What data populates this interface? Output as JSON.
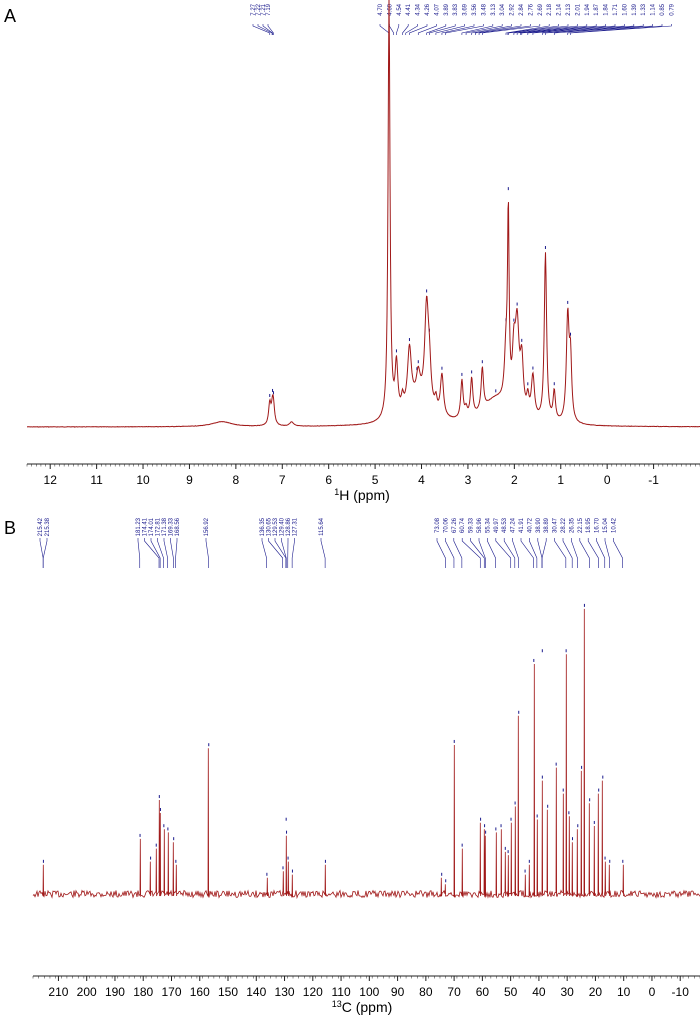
{
  "chart_data": [
    {
      "type": "line",
      "panel_label": "A",
      "xlabel_sup": "1",
      "xlabel_main": "H (ppm)",
      "xlim": [
        12.5,
        -2.0
      ],
      "ticks": [
        "12",
        "11",
        "10",
        "9",
        "8",
        "7",
        "6",
        "5",
        "4",
        "3",
        "2",
        "1",
        "0",
        "-1"
      ],
      "peak_labels": {
        "left_group": [
          "7.27",
          "7.22",
          "7.21",
          "7.19"
        ],
        "right_group": [
          "4.70",
          "4.60",
          "4.54",
          "4.41",
          "4.34",
          "4.26",
          "4.07",
          "3.89",
          "3.83",
          "3.69",
          "3.56",
          "3.48",
          "3.13",
          "3.04",
          "2.92",
          "2.84",
          "2.76",
          "2.69",
          "2.18",
          "2.14",
          "2.13",
          "2.01",
          "1.94",
          "1.87",
          "1.84",
          "1.71",
          "1.60",
          "1.39",
          "1.33",
          "1.14",
          "0.85",
          "0.79"
        ]
      },
      "peaks": [
        {
          "x": 8.3,
          "y": 0.012,
          "w": 0.25
        },
        {
          "x": 7.27,
          "y": 0.05,
          "w": 0.03
        },
        {
          "x": 7.21,
          "y": 0.04,
          "w": 0.03
        },
        {
          "x": 7.19,
          "y": 0.035,
          "w": 0.03
        },
        {
          "x": 6.8,
          "y": 0.01,
          "w": 0.05
        },
        {
          "x": 4.7,
          "y": 1.0,
          "w": 0.025
        },
        {
          "x": 4.54,
          "y": 0.12,
          "w": 0.035
        },
        {
          "x": 4.41,
          "y": 0.03,
          "w": 0.03
        },
        {
          "x": 4.26,
          "y": 0.14,
          "w": 0.05
        },
        {
          "x": 4.07,
          "y": 0.06,
          "w": 0.05
        },
        {
          "x": 3.89,
          "y": 0.24,
          "w": 0.05
        },
        {
          "x": 3.83,
          "y": 0.08,
          "w": 0.04
        },
        {
          "x": 3.69,
          "y": 0.03,
          "w": 0.03
        },
        {
          "x": 3.56,
          "y": 0.1,
          "w": 0.04
        },
        {
          "x": 3.13,
          "y": 0.09,
          "w": 0.03
        },
        {
          "x": 3.04,
          "y": 0.02,
          "w": 0.03
        },
        {
          "x": 2.92,
          "y": 0.09,
          "w": 0.03
        },
        {
          "x": 2.69,
          "y": 0.1,
          "w": 0.03
        },
        {
          "x": 2.18,
          "y": 0.12,
          "w": 0.04
        },
        {
          "x": 2.13,
          "y": 0.44,
          "w": 0.02
        },
        {
          "x": 2.01,
          "y": 0.12,
          "w": 0.04
        },
        {
          "x": 1.94,
          "y": 0.2,
          "w": 0.05
        },
        {
          "x": 1.84,
          "y": 0.12,
          "w": 0.04
        },
        {
          "x": 1.71,
          "y": 0.04,
          "w": 0.03
        },
        {
          "x": 1.6,
          "y": 0.1,
          "w": 0.04
        },
        {
          "x": 1.33,
          "y": 0.4,
          "w": 0.03
        },
        {
          "x": 1.14,
          "y": 0.07,
          "w": 0.03
        },
        {
          "x": 0.85,
          "y": 0.25,
          "w": 0.035
        },
        {
          "x": 0.79,
          "y": 0.14,
          "w": 0.03
        },
        {
          "x": 2.4,
          "y": 0.06,
          "w": 0.35
        },
        {
          "x": 4.1,
          "y": 0.05,
          "w": 0.3
        }
      ]
    },
    {
      "type": "line",
      "panel_label": "B",
      "xlabel_sup": "13",
      "xlabel_main": "C (ppm)",
      "xlim": [
        219,
        -17
      ],
      "ticks": [
        "210",
        "200",
        "190",
        "180",
        "170",
        "160",
        "150",
        "140",
        "130",
        "120",
        "110",
        "100",
        "90",
        "80",
        "70",
        "60",
        "50",
        "40",
        "30",
        "20",
        "10",
        "0",
        "-10"
      ],
      "peak_labels": {
        "group1": [
          "215.42",
          "215.38"
        ],
        "group2": [
          "181.23",
          "174.41",
          "174.01",
          "172.81",
          "171.38",
          "169.33",
          "168.56"
        ],
        "group3": [
          "156.92"
        ],
        "group4": [
          "136.35",
          "130.65",
          "129.53",
          "129.40",
          "128.86",
          "127.31"
        ],
        "group5": [
          "115.64"
        ],
        "group6": [
          "73.08",
          "70.06",
          "67.26",
          "60.74",
          "59.33",
          "58.96",
          "55.34",
          "49.97",
          "48.53",
          "47.24",
          "41.91",
          "40.72",
          "38.90",
          "38.89",
          "30.47",
          "28.22",
          "26.35",
          "22.15",
          "18.95",
          "16.70",
          "15.04",
          "10.42"
        ]
      },
      "peaks": [
        {
          "x": 215.42,
          "y": 0.09
        },
        {
          "x": 181.23,
          "y": 0.17
        },
        {
          "x": 177.5,
          "y": 0.1
        },
        {
          "x": 175.5,
          "y": 0.14
        },
        {
          "x": 174.41,
          "y": 0.29
        },
        {
          "x": 174.01,
          "y": 0.25
        },
        {
          "x": 172.81,
          "y": 0.2
        },
        {
          "x": 171.38,
          "y": 0.19
        },
        {
          "x": 169.33,
          "y": 0.16
        },
        {
          "x": 168.56,
          "y": 0.09
        },
        {
          "x": 156.92,
          "y": 0.45
        },
        {
          "x": 136.35,
          "y": 0.05
        },
        {
          "x": 130.65,
          "y": 0.07
        },
        {
          "x": 129.53,
          "y": 0.22
        },
        {
          "x": 129.4,
          "y": 0.18
        },
        {
          "x": 128.86,
          "y": 0.1
        },
        {
          "x": 127.31,
          "y": 0.06
        },
        {
          "x": 115.64,
          "y": 0.09
        },
        {
          "x": 74.5,
          "y": 0.05
        },
        {
          "x": 73.08,
          "y": 0.03
        },
        {
          "x": 70.06,
          "y": 0.46
        },
        {
          "x": 67.26,
          "y": 0.14
        },
        {
          "x": 60.74,
          "y": 0.22
        },
        {
          "x": 59.33,
          "y": 0.2
        },
        {
          "x": 58.96,
          "y": 0.18
        },
        {
          "x": 55.34,
          "y": 0.19
        },
        {
          "x": 53.5,
          "y": 0.2
        },
        {
          "x": 52.0,
          "y": 0.13
        },
        {
          "x": 51.0,
          "y": 0.12
        },
        {
          "x": 49.97,
          "y": 0.22
        },
        {
          "x": 48.53,
          "y": 0.27
        },
        {
          "x": 47.24,
          "y": 0.55
        },
        {
          "x": 45.0,
          "y": 0.06
        },
        {
          "x": 43.5,
          "y": 0.09
        },
        {
          "x": 41.91,
          "y": 0.71
        },
        {
          "x": 40.72,
          "y": 0.23
        },
        {
          "x": 38.9,
          "y": 0.74
        },
        {
          "x": 38.89,
          "y": 0.35
        },
        {
          "x": 37.0,
          "y": 0.26
        },
        {
          "x": 34.0,
          "y": 0.39
        },
        {
          "x": 31.5,
          "y": 0.31
        },
        {
          "x": 30.47,
          "y": 0.74
        },
        {
          "x": 29.5,
          "y": 0.24
        },
        {
          "x": 28.22,
          "y": 0.16
        },
        {
          "x": 26.35,
          "y": 0.2
        },
        {
          "x": 25.0,
          "y": 0.38
        },
        {
          "x": 24.0,
          "y": 0.88
        },
        {
          "x": 22.15,
          "y": 0.28
        },
        {
          "x": 20.5,
          "y": 0.21
        },
        {
          "x": 18.95,
          "y": 0.31
        },
        {
          "x": 17.5,
          "y": 0.35
        },
        {
          "x": 16.7,
          "y": 0.1
        },
        {
          "x": 15.04,
          "y": 0.09
        },
        {
          "x": 10.42,
          "y": 0.09
        }
      ]
    }
  ],
  "colors": {
    "trace": "#a01818",
    "label": "#1a1a8c",
    "axis": "#222222"
  }
}
